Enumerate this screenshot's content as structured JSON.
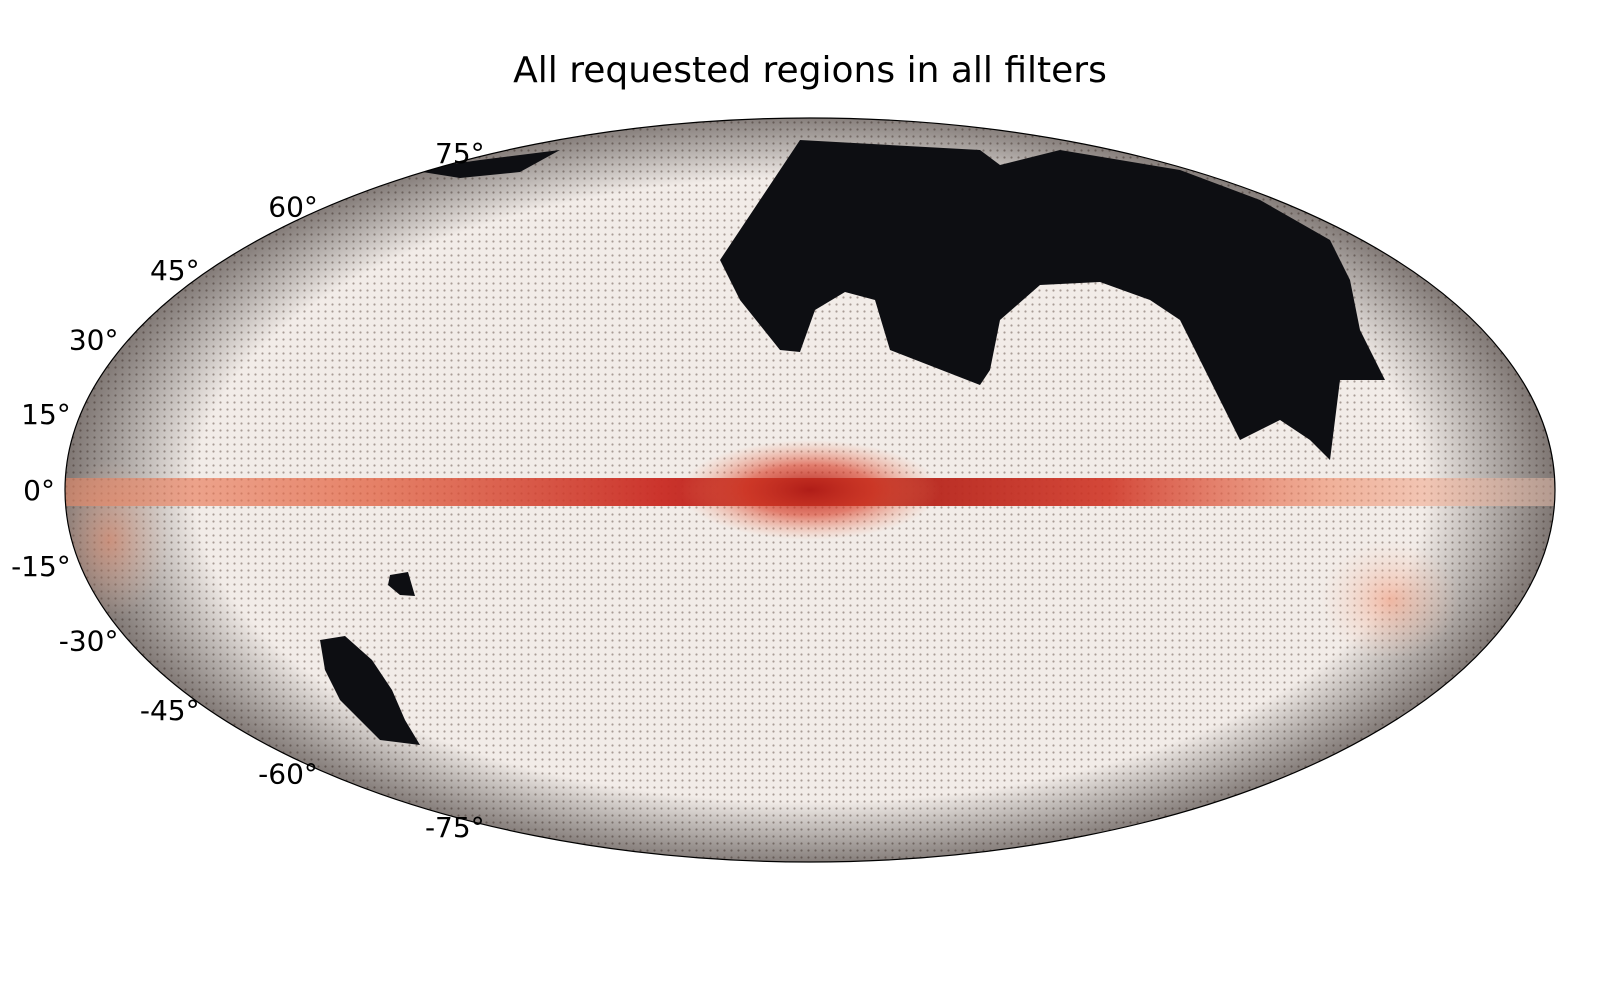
{
  "chart_data": {
    "type": "heatmap",
    "projection": "mollweide",
    "title": "All requested regions in all filters",
    "ylabel_ticks": [
      "75°",
      "60°",
      "45°",
      "30°",
      "15°",
      "0°",
      "-15°",
      "-30°",
      "-45°",
      "-60°",
      "-75°"
    ],
    "lat_values": [
      75,
      60,
      45,
      30,
      15,
      0,
      -15,
      -30,
      -45,
      -60,
      -75
    ],
    "colormap": [
      "#f3e9e4",
      "#f4c6b2",
      "#ef8a66",
      "#d9412b",
      "#a81d18"
    ],
    "unobserved_color": "#0d0e12",
    "graticule": true,
    "regions": {
      "galactic_plane": {
        "lon_range": [
          -180,
          180
        ],
        "lat_center": 0,
        "peak": 1.0
      },
      "unobserved_north": {
        "lon_range": [
          -5,
          150
        ],
        "lat_range": [
          12,
          75
        ]
      },
      "unobserved_small_south_a": {
        "lon_center": -120,
        "lat_center": -17
      },
      "unobserved_small_south_b": {
        "lon_center": -130,
        "lat_center": -38
      }
    }
  }
}
